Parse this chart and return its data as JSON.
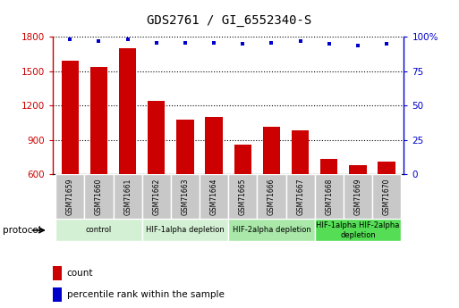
{
  "title": "GDS2761 / GI_6552340-S",
  "samples": [
    "GSM71659",
    "GSM71660",
    "GSM71661",
    "GSM71662",
    "GSM71663",
    "GSM71664",
    "GSM71665",
    "GSM71666",
    "GSM71667",
    "GSM71668",
    "GSM71669",
    "GSM71670"
  ],
  "bar_values": [
    1590,
    1540,
    1700,
    1240,
    1080,
    1100,
    860,
    1010,
    980,
    730,
    680,
    710
  ],
  "dot_values": [
    98,
    97,
    98,
    96,
    96,
    96,
    95,
    96,
    97,
    95,
    94,
    95
  ],
  "ylim_left": [
    600,
    1800
  ],
  "ylim_right": [
    0,
    100
  ],
  "yticks_left": [
    600,
    900,
    1200,
    1500,
    1800
  ],
  "yticks_right": [
    0,
    25,
    50,
    75,
    100
  ],
  "bar_color": "#cc0000",
  "dot_color": "#0000cc",
  "sample_box_color": "#c8c8c8",
  "group_spans": [
    {
      "label": "control",
      "start": 0,
      "end": 2,
      "color": "#d4f0d4"
    },
    {
      "label": "HIF-1alpha depletion",
      "start": 3,
      "end": 5,
      "color": "#d4f0d4"
    },
    {
      "label": "HIF-2alpha depletion",
      "start": 6,
      "end": 8,
      "color": "#aae8aa"
    },
    {
      "label": "HIF-1alpha HIF-2alpha\ndepletion",
      "start": 9,
      "end": 11,
      "color": "#55dd55"
    }
  ],
  "legend_count_color": "#cc0000",
  "legend_percentile_color": "#0000cc"
}
